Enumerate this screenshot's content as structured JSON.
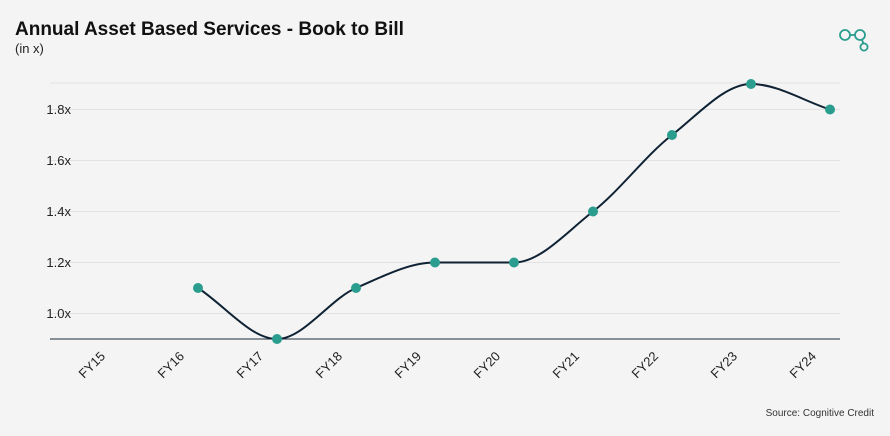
{
  "header": {
    "title": "Annual Asset Based Services - Book to Bill",
    "subtitle": "(in x)"
  },
  "footer": {
    "source": "Source: Cognitive Credit"
  },
  "logo": {
    "icon": "chain-link-logo-icon",
    "color": "#2a9d8f"
  },
  "colors": {
    "line": "#0f2233",
    "point": "#2a9d8f",
    "grid": "#e2e2e2",
    "axis": "#1c2b3a"
  },
  "chart_data": {
    "type": "line",
    "title": "Annual Asset Based Services - Book to Bill",
    "ylabel": "(in x)",
    "categories": [
      "FY15",
      "FY16",
      "FY17",
      "FY18",
      "FY19",
      "FY20",
      "FY21",
      "FY22",
      "FY23",
      "FY24"
    ],
    "values": [
      null,
      1.1,
      0.9,
      1.1,
      1.2,
      1.2,
      1.4,
      1.7,
      1.9,
      1.8
    ],
    "yticks": [
      1.0,
      1.2,
      1.4,
      1.6,
      1.8
    ],
    "ytick_labels": [
      "1.0x",
      "1.2x",
      "1.4x",
      "1.6x",
      "1.8x"
    ],
    "ylim": [
      0.9,
      1.9
    ],
    "grid": true,
    "smooth": true
  }
}
